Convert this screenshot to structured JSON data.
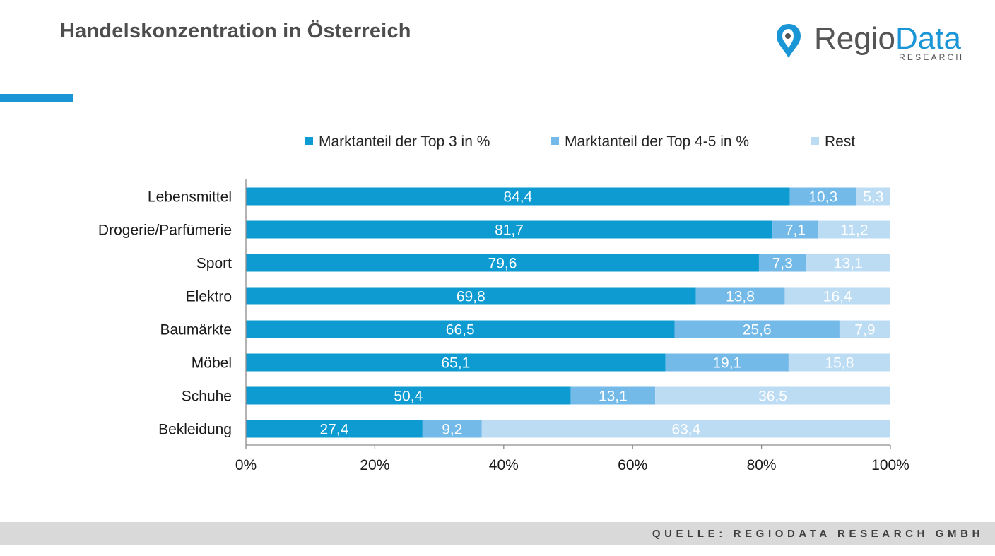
{
  "header": {
    "title": "Handelskonzentration  in Österreich"
  },
  "logo": {
    "word_regio": "Regio",
    "word_data": "Data",
    "subtitle": "RESEARCH",
    "colors": {
      "dark": "#555555",
      "blue": "#1a96d6"
    }
  },
  "footer": {
    "source": "QUELLE: REGIODATA RESEARCH GMBH"
  },
  "chart_data": {
    "type": "bar",
    "orientation": "horizontal",
    "stacked": true,
    "percent_stacked": true,
    "categories": [
      "Lebensmittel",
      "Drogerie/Parfümerie",
      "Sport",
      "Elektro",
      "Baumärkte",
      "Möbel",
      "Schuhe",
      "Bekleidung"
    ],
    "series": [
      {
        "name": "Marktanteil der Top 3 in %",
        "color": "#0e9bd2",
        "values": [
          84.4,
          81.7,
          79.6,
          69.8,
          66.5,
          65.1,
          50.4,
          27.4
        ],
        "labels": [
          "84,4",
          "81,7",
          "79,6",
          "69,8",
          "66,5",
          "65,1",
          "50,4",
          "27,4"
        ]
      },
      {
        "name": "Marktanteil der Top 4-5 in %",
        "color": "#74bae8",
        "values": [
          10.3,
          7.1,
          7.3,
          13.8,
          25.6,
          19.1,
          13.1,
          9.2
        ],
        "labels": [
          "10,3",
          "7,1",
          "7,3",
          "13,8",
          "25,6",
          "19,1",
          "13,1",
          "9,2"
        ]
      },
      {
        "name": "Rest",
        "color": "#bcdcf4",
        "values": [
          5.3,
          11.2,
          13.1,
          16.4,
          7.9,
          15.8,
          36.5,
          63.4
        ],
        "labels": [
          "5,3",
          "11,2",
          "13,1",
          "16,4",
          "7,9",
          "15,8",
          "36,5",
          "63,4"
        ]
      }
    ],
    "x_ticks": [
      "0%",
      "20%",
      "40%",
      "60%",
      "80%",
      "100%"
    ],
    "xlim": [
      0,
      100
    ],
    "legend_position": "top",
    "grid": false
  }
}
